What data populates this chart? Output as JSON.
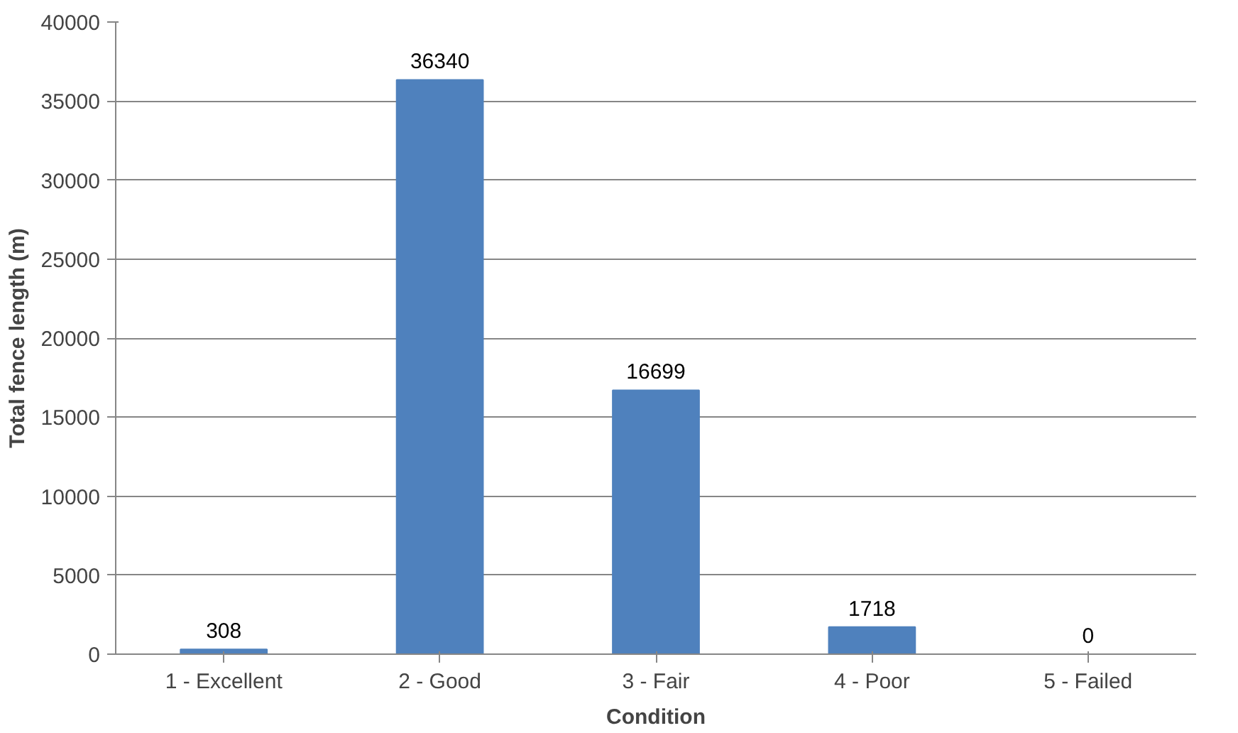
{
  "chart_data": {
    "type": "bar",
    "xlabel": "Condition",
    "ylabel": "Total fence length (m)",
    "categories": [
      "1 - Excellent",
      "2 - Good",
      "3 - Fair",
      "4 - Poor",
      "5 - Failed"
    ],
    "values": [
      308,
      36340,
      16699,
      1718,
      0
    ],
    "color": "#4f81bd",
    "ylim": [
      0,
      40000
    ],
    "yticks": [
      0,
      5000,
      10000,
      15000,
      20000,
      25000,
      30000,
      35000,
      40000
    ],
    "grid": "y",
    "data_labels": true
  }
}
